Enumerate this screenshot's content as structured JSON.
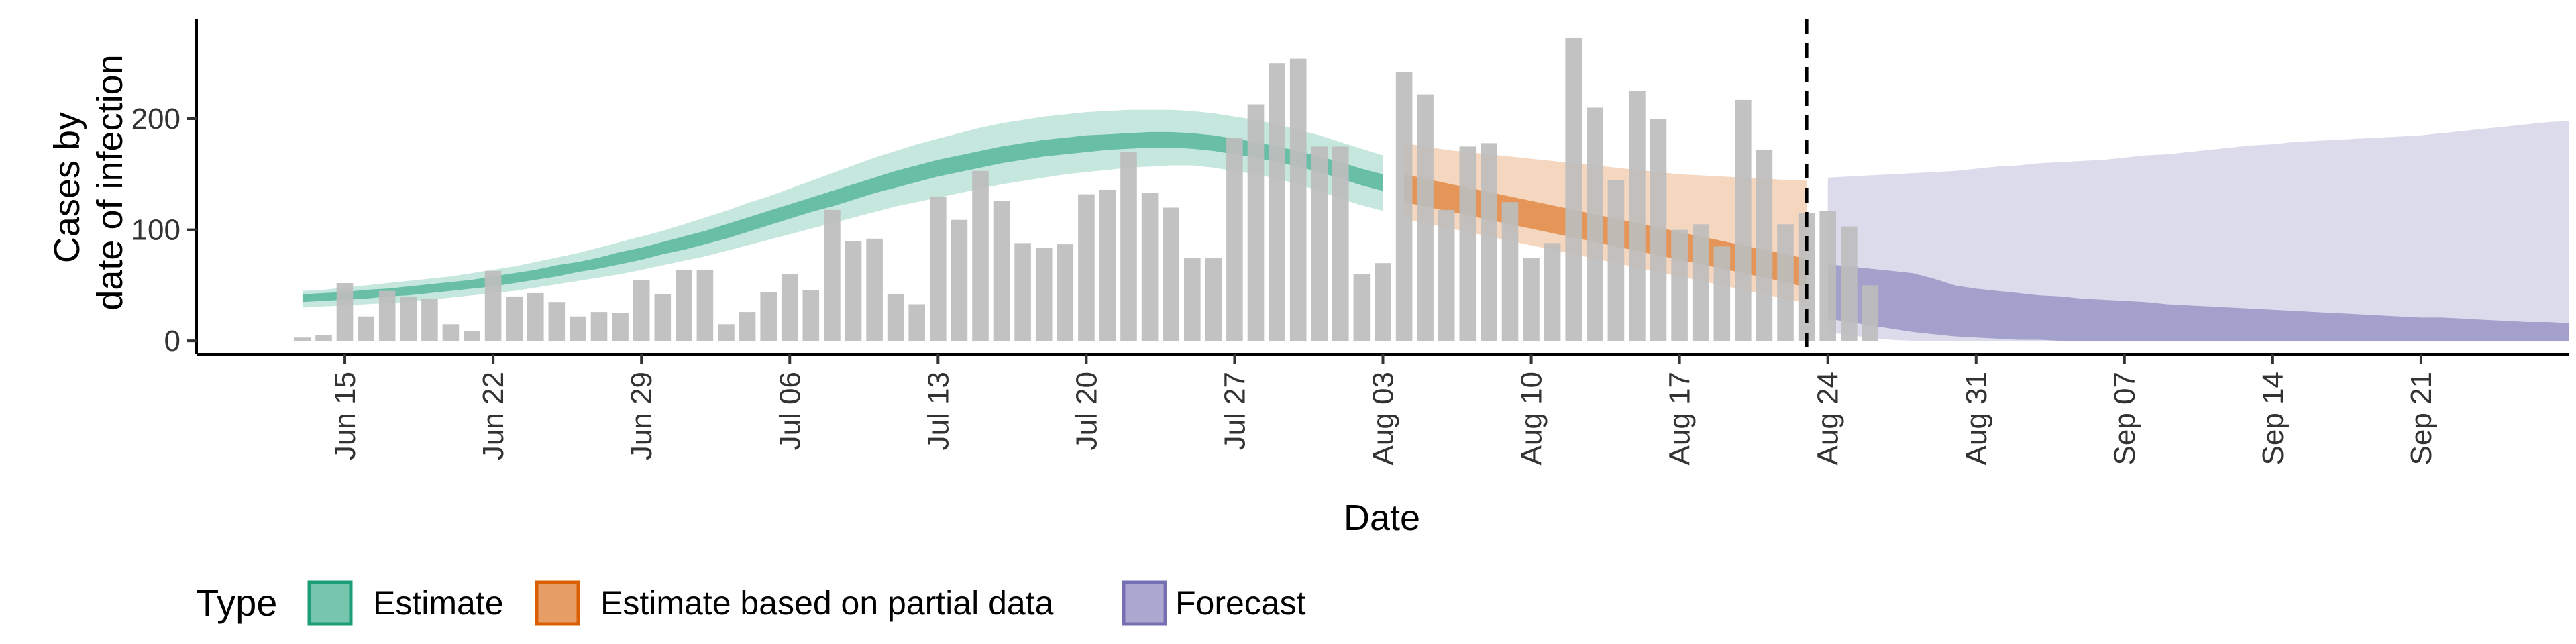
{
  "chart_data": {
    "type": "bar+area",
    "xlabel": "Date",
    "ylabel_lines": [
      "Cases by",
      "date of infection"
    ],
    "ylim": [
      -12,
      290
    ],
    "y_ticks": [
      0,
      100,
      200
    ],
    "x_ticks": [
      "Jun 15",
      "Jun 22",
      "Jun 29",
      "Jul 06",
      "Jul 13",
      "Jul 20",
      "Jul 27",
      "Aug 03",
      "Aug 10",
      "Aug 17",
      "Aug 24",
      "Aug 31",
      "Sep 07",
      "Sep 14",
      "Sep 21"
    ],
    "x_start_date": "2020-06-08",
    "xlim_day_index": [
      0,
      112
    ],
    "vline_day_index": 76,
    "grid": false,
    "legend": {
      "title": "Type",
      "position": "bottom-left",
      "entries": [
        {
          "label": "Estimate",
          "color": "#1B9E77"
        },
        {
          "label": "Estimate based on partial data",
          "color": "#D95F02"
        },
        {
          "label": "Forecast",
          "color": "#7570B3"
        }
      ]
    },
    "bars": {
      "start_day_index": 5,
      "color": "#bdbdbd",
      "values": [
        3,
        5,
        52,
        22,
        45,
        40,
        38,
        15,
        9,
        63,
        40,
        43,
        35,
        22,
        26,
        25,
        55,
        42,
        64,
        64,
        15,
        26,
        44,
        60,
        46,
        118,
        90,
        92,
        42,
        33,
        130,
        109,
        153,
        126,
        88,
        84,
        87,
        132,
        136,
        170,
        133,
        120,
        75,
        75,
        183,
        213,
        250,
        254,
        175,
        175,
        60,
        70,
        242,
        222,
        118,
        175,
        178,
        125,
        75,
        88,
        273,
        210,
        145,
        225,
        200,
        100,
        105,
        85,
        217,
        172,
        105,
        115,
        117,
        103,
        50
      ]
    },
    "series": [
      {
        "name": "Estimate",
        "color": "#1B9E77",
        "start_day_index": 5,
        "ci_outer_lower": [
          30,
          31,
          32,
          33,
          34,
          35,
          37,
          39,
          41,
          43,
          45,
          48,
          51,
          54,
          57,
          60,
          64,
          68,
          72,
          76,
          81,
          86,
          91,
          96,
          101,
          106,
          111,
          116,
          121,
          125,
          129,
          133,
          137,
          141,
          144,
          147,
          150,
          152,
          154,
          156,
          157,
          158,
          158,
          156,
          153,
          150,
          146,
          141,
          135,
          128,
          122,
          117
        ],
        "ci_inner_lower": [
          35,
          36,
          37,
          38,
          40,
          41,
          43,
          45,
          47,
          49,
          52,
          55,
          58,
          62,
          65,
          69,
          73,
          78,
          82,
          87,
          92,
          98,
          104,
          110,
          116,
          121,
          127,
          133,
          138,
          143,
          148,
          152,
          156,
          160,
          163,
          166,
          168,
          170,
          172,
          173,
          174,
          174,
          173,
          171,
          168,
          165,
          161,
          157,
          152,
          146,
          140,
          135
        ],
        "ci_inner_upper": [
          42,
          43,
          44,
          46,
          47,
          49,
          51,
          53,
          55,
          58,
          61,
          64,
          68,
          71,
          75,
          80,
          84,
          89,
          94,
          99,
          105,
          111,
          117,
          123,
          129,
          135,
          141,
          147,
          153,
          158,
          163,
          167,
          171,
          175,
          178,
          181,
          183,
          185,
          186,
          187,
          188,
          188,
          187,
          185,
          182,
          179,
          175,
          171,
          166,
          161,
          155,
          150
        ],
        "ci_outer_upper": [
          45,
          46,
          48,
          50,
          52,
          54,
          56,
          58,
          61,
          64,
          67,
          71,
          75,
          79,
          84,
          89,
          94,
          99,
          105,
          111,
          117,
          124,
          130,
          137,
          144,
          151,
          158,
          165,
          171,
          177,
          182,
          187,
          192,
          196,
          199,
          202,
          204,
          206,
          207,
          208,
          208,
          208,
          207,
          205,
          202,
          199,
          195,
          190,
          185,
          179,
          173,
          167
        ]
      },
      {
        "name": "Estimate based on partial data",
        "color": "#D95F02",
        "start_day_index": 57,
        "ci_outer_lower": [
          110,
          106,
          102,
          98,
          94,
          90,
          86,
          82,
          78,
          74,
          70,
          66,
          62,
          58,
          54,
          50,
          46,
          42,
          38,
          34
        ],
        "ci_inner_lower": [
          125,
          121,
          117,
          113,
          109,
          105,
          101,
          97,
          93,
          89,
          85,
          81,
          77,
          73,
          69,
          65,
          61,
          57,
          53,
          48
        ],
        "ci_inner_upper": [
          150,
          146,
          142,
          138,
          134,
          130,
          126,
          122,
          118,
          114,
          110,
          106,
          102,
          98,
          94,
          90,
          86,
          82,
          78,
          74
        ],
        "ci_outer_upper": [
          178,
          175,
          172,
          170,
          168,
          166,
          164,
          162,
          160,
          158,
          156,
          154,
          152,
          150,
          149,
          148,
          147,
          146,
          145,
          145
        ]
      },
      {
        "name": "Forecast",
        "color": "#7570B3",
        "start_day_index": 77,
        "ci_outer_lower": [
          8,
          5,
          3,
          1,
          0,
          0,
          0,
          0,
          0,
          0,
          0,
          0,
          0,
          0,
          0,
          0,
          0,
          0,
          0,
          0,
          0,
          0,
          0,
          0,
          0,
          0,
          0,
          0,
          0,
          0,
          0,
          0,
          0,
          0,
          0,
          0
        ],
        "ci_inner_lower": [
          20,
          17,
          14,
          11,
          8,
          6,
          4,
          3,
          2,
          1,
          1,
          0,
          0,
          0,
          0,
          0,
          0,
          0,
          0,
          0,
          0,
          0,
          0,
          0,
          0,
          0,
          0,
          0,
          0,
          0,
          0,
          0,
          0,
          0,
          0,
          0
        ],
        "ci_inner_upper": [
          69,
          67,
          65,
          63,
          61,
          56,
          50,
          47,
          45,
          43,
          41,
          40,
          38,
          37,
          36,
          35,
          33,
          32,
          31,
          30,
          29,
          28,
          27,
          26,
          25,
          24,
          23,
          22,
          21,
          21,
          20,
          19,
          18,
          17,
          17,
          16
        ],
        "ci_outer_upper": [
          147,
          148,
          149,
          150,
          151,
          152,
          153,
          155,
          157,
          158,
          160,
          161,
          162,
          163,
          165,
          167,
          168,
          170,
          172,
          174,
          176,
          177,
          179,
          180,
          181,
          182,
          183,
          184,
          185,
          187,
          189,
          191,
          193,
          195,
          197,
          198
        ]
      }
    ]
  }
}
